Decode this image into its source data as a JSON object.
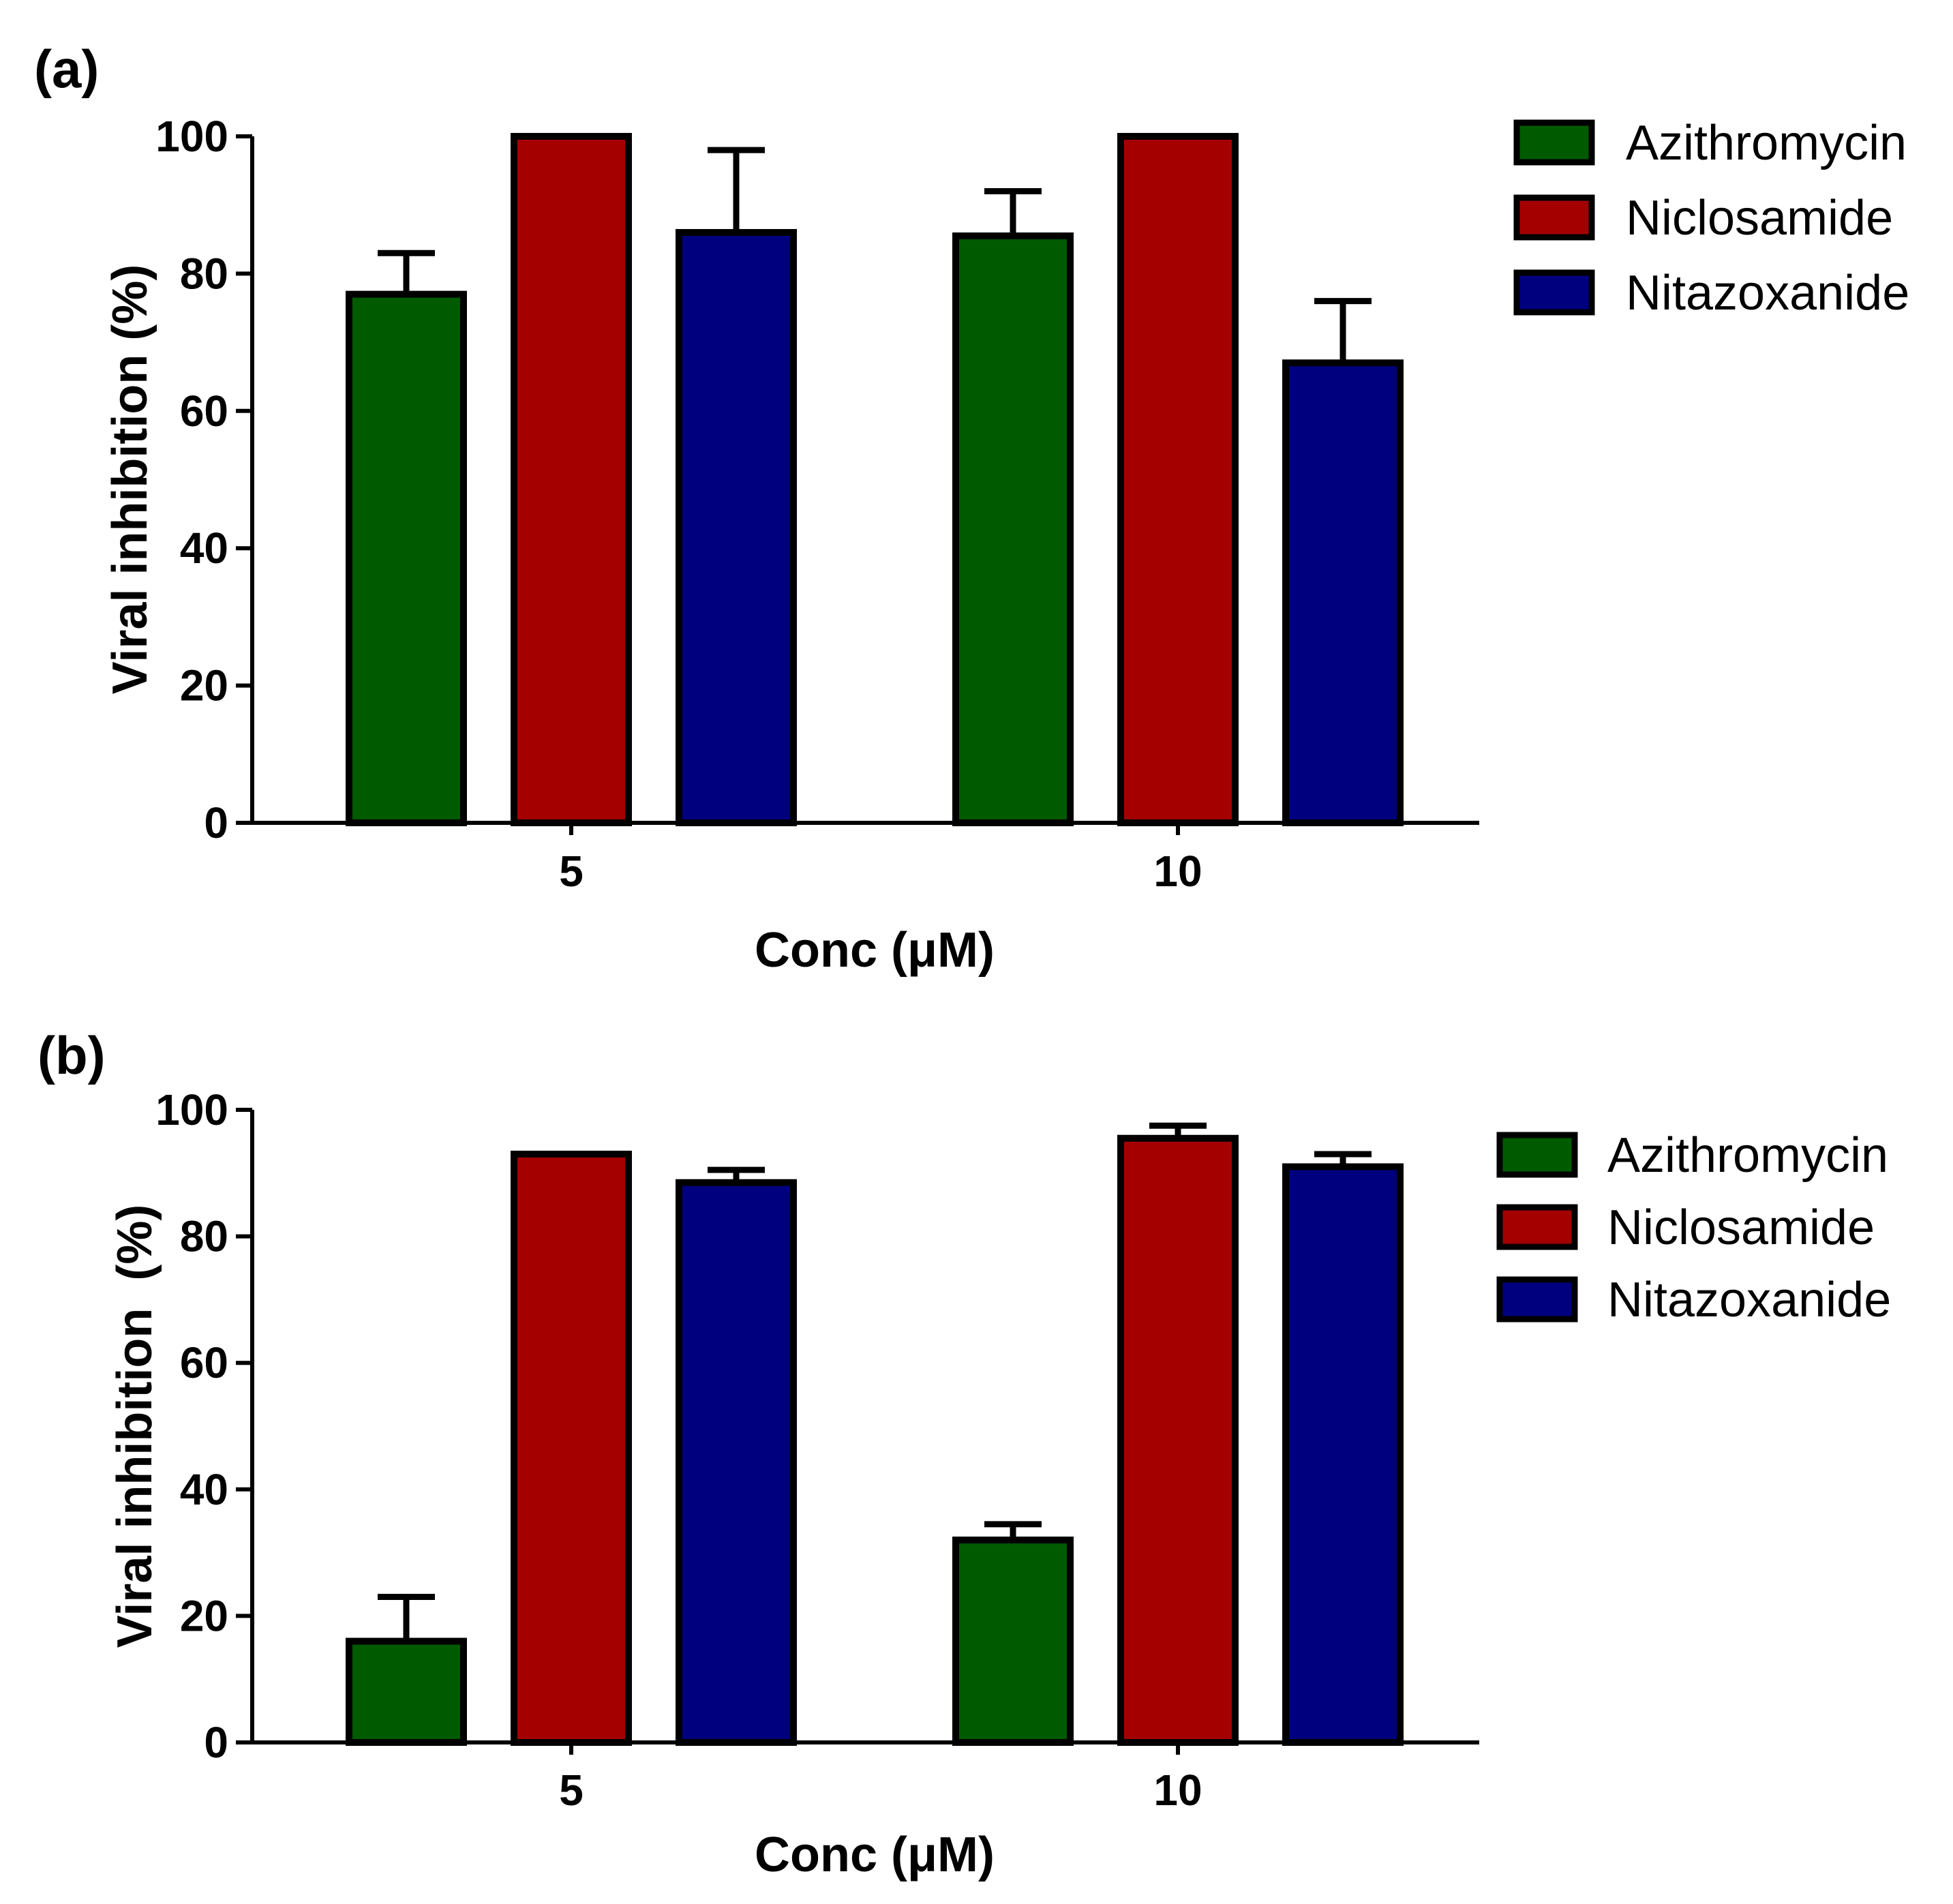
{
  "chart_data": [
    {
      "panel_label": "(a)",
      "type": "bar",
      "categories": [
        "5",
        "10"
      ],
      "series": [
        {
          "name": "Azithromycin",
          "color": "#005a00",
          "values": [
            77,
            85.5
          ],
          "errors": [
            6,
            6.5
          ]
        },
        {
          "name": "Niclosamide",
          "color": "#a50000",
          "values": [
            100,
            100
          ],
          "errors": [
            0,
            0
          ]
        },
        {
          "name": "Nitazoxanide",
          "color": "#00007f",
          "values": [
            86,
            67
          ],
          "errors": [
            12,
            9
          ]
        }
      ],
      "yticks": [
        "0",
        "20",
        "40",
        "60",
        "80",
        "100"
      ],
      "ylim": [
        0,
        100
      ],
      "xlabel": "Conc (μM)",
      "ylabel": "Viral inhibition (%)",
      "legend": "top-right",
      "grid": false
    },
    {
      "panel_label": "(b)",
      "type": "bar",
      "categories": [
        "5",
        "10"
      ],
      "series": [
        {
          "name": "Azithromycin",
          "color": "#005a00",
          "values": [
            16,
            32
          ],
          "errors": [
            7,
            2.5
          ]
        },
        {
          "name": "Niclosamide",
          "color": "#a50000",
          "values": [
            93,
            95.5
          ],
          "errors": [
            0,
            2
          ]
        },
        {
          "name": "Nitazoxanide",
          "color": "#00007f",
          "values": [
            88.5,
            91
          ],
          "errors": [
            2,
            2
          ]
        }
      ],
      "yticks": [
        "0",
        "20",
        "40",
        "60",
        "80",
        "100"
      ],
      "ylim": [
        0,
        100
      ],
      "xlabel": "Conc (μM)",
      "ylabel": "Viral inhibition  (%)",
      "legend": "top-right",
      "grid": false
    }
  ]
}
